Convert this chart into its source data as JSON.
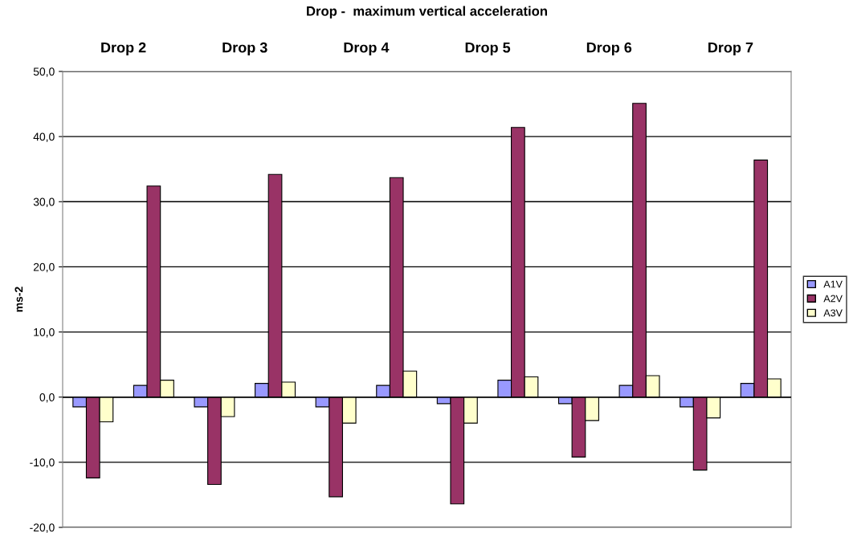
{
  "chart_data": {
    "type": "bar",
    "title": "Drop -  maximum vertical acceleration",
    "ylabel": "ms-2",
    "categories": [
      null,
      null,
      null,
      null,
      null,
      null,
      null,
      null,
      null,
      null,
      null,
      null
    ],
    "annotations": [
      "Drop 2",
      "Drop 3",
      "Drop 4",
      "Drop 5",
      "Drop 6",
      "Drop 7"
    ],
    "series": [
      {
        "name": "A1V",
        "color": "#9999ff",
        "values": [
          -1.5,
          1.8,
          -1.5,
          2.1,
          -1.5,
          1.8,
          -1.0,
          2.6,
          -1.0,
          1.8,
          -1.5,
          2.1
        ]
      },
      {
        "name": "A2V",
        "color": "#993366",
        "values": [
          -12.4,
          32.4,
          -13.4,
          34.2,
          -15.3,
          33.7,
          -16.4,
          41.4,
          -9.2,
          45.1,
          -11.2,
          36.4
        ]
      },
      {
        "name": "A3V",
        "color": "#ffffcc",
        "values": [
          -3.8,
          2.6,
          -3.0,
          2.3,
          -4.0,
          4.0,
          -4.0,
          3.1,
          -3.6,
          3.3,
          -3.2,
          2.8
        ]
      }
    ],
    "ylim": [
      -20,
      50
    ],
    "yticks": [
      {
        "value": -20,
        "label": "-20,0"
      },
      {
        "value": -10,
        "label": "-10,0"
      },
      {
        "value": 0,
        "label": "0,0"
      },
      {
        "value": 10,
        "label": "10,0"
      },
      {
        "value": 20,
        "label": "20,0"
      },
      {
        "value": 30,
        "label": "30,0"
      },
      {
        "value": 40,
        "label": "40,0"
      },
      {
        "value": 50,
        "label": "50,0"
      }
    ],
    "grid": "y",
    "legend": "right"
  }
}
